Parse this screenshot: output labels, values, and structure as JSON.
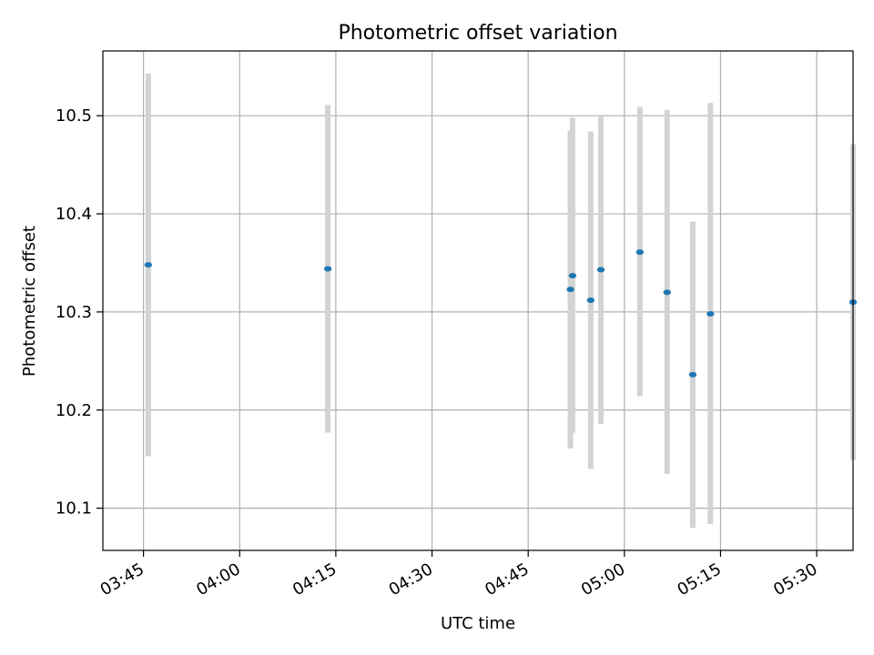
{
  "chart_data": {
    "type": "scatter",
    "title": "Photometric offset variation",
    "xlabel": "UTC time",
    "ylabel": "Photometric offset",
    "x_axis_type": "time",
    "xlim": [
      "03:38:40",
      "05:35:40"
    ],
    "ylim": [
      10.057,
      10.566
    ],
    "x_ticks": [
      "03:45",
      "04:00",
      "04:15",
      "04:30",
      "04:45",
      "05:00",
      "05:15",
      "05:30"
    ],
    "y_ticks": [
      10.1,
      10.2,
      10.3,
      10.4,
      10.5
    ],
    "y_tick_labels": [
      "10.1",
      "10.2",
      "10.3",
      "10.4",
      "10.5"
    ],
    "grid": true,
    "points": [
      {
        "x": "03:45:45",
        "y": 10.348,
        "err_low": 10.153,
        "err_high": 10.543
      },
      {
        "x": "04:13:45",
        "y": 10.344,
        "err_low": 10.177,
        "err_high": 10.511
      },
      {
        "x": "04:51:35",
        "y": 10.323,
        "err_low": 10.161,
        "err_high": 10.485
      },
      {
        "x": "04:51:55",
        "y": 10.337,
        "err_low": 10.177,
        "err_high": 10.498
      },
      {
        "x": "04:54:45",
        "y": 10.312,
        "err_low": 10.14,
        "err_high": 10.484
      },
      {
        "x": "04:56:20",
        "y": 10.343,
        "err_low": 10.186,
        "err_high": 10.499
      },
      {
        "x": "05:02:25",
        "y": 10.361,
        "err_low": 10.214,
        "err_high": 10.509
      },
      {
        "x": "05:06:40",
        "y": 10.32,
        "err_low": 10.135,
        "err_high": 10.506
      },
      {
        "x": "05:10:40",
        "y": 10.236,
        "err_low": 10.08,
        "err_high": 10.392
      },
      {
        "x": "05:13:25",
        "y": 10.298,
        "err_low": 10.084,
        "err_high": 10.513
      },
      {
        "x": "05:35:40",
        "y": 10.31,
        "err_low": 10.149,
        "err_high": 10.471
      }
    ],
    "colors": {
      "point": "#1f77b4",
      "errorbar": "#d3d3d3",
      "grid": "#b0b0b0",
      "axes": "#000000"
    }
  }
}
